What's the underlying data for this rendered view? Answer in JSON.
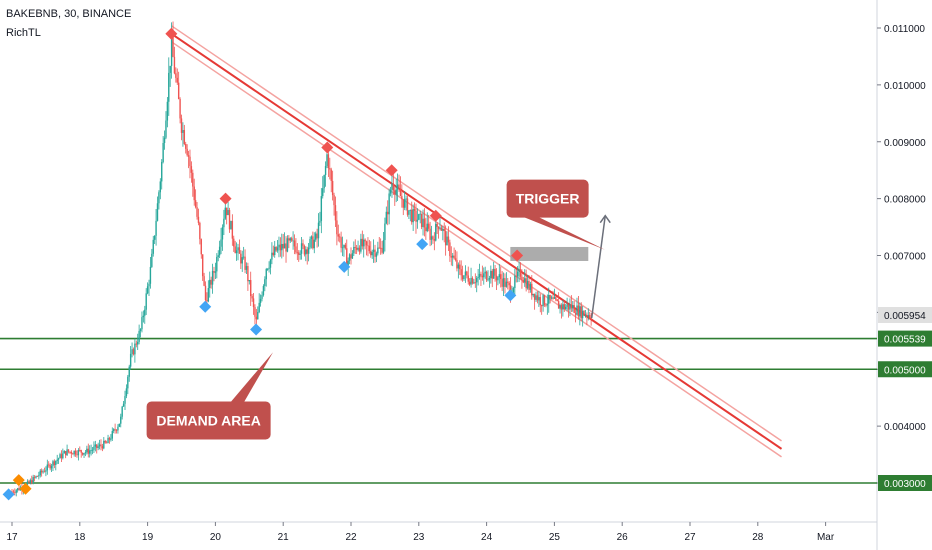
{
  "header": {
    "symbol_line": "BAKEBNB, 30, BINANCE",
    "indicator": "RichTL"
  },
  "colors": {
    "up": "#26a69a",
    "down": "#ef5350",
    "level": "#2e7d32",
    "trend": "#e53935",
    "trend_band": "#f4a3a0",
    "callout": "#c0504d",
    "trigger_box": "#9e9e9e",
    "buy_marker": "#42a5f5",
    "sell_marker": "#ef5350",
    "start_marker": "#fb8c00",
    "current_price_tag": "#e0e0e0"
  },
  "chart_data": {
    "type": "candlestick",
    "x_ticks": [
      "17",
      "18",
      "19",
      "20",
      "21",
      "22",
      "23",
      "24",
      "25",
      "26",
      "27",
      "28",
      "Mar"
    ],
    "y_ticks": [
      "0.011000",
      "0.010000",
      "0.009000",
      "0.008000",
      "0.007000",
      "0.006000",
      "0.005000",
      "0.004000",
      "0.003000"
    ],
    "ylim": [
      0.0019,
      0.0114
    ],
    "price_series": [
      [
        17.0,
        0.00285
      ],
      [
        17.2,
        0.00295
      ],
      [
        17.5,
        0.00325
      ],
      [
        17.8,
        0.00355
      ],
      [
        18.1,
        0.00355
      ],
      [
        18.4,
        0.0037
      ],
      [
        18.6,
        0.0041
      ],
      [
        18.75,
        0.0052
      ],
      [
        18.9,
        0.0057
      ],
      [
        19.05,
        0.0068
      ],
      [
        19.2,
        0.0085
      ],
      [
        19.35,
        0.0107
      ],
      [
        19.5,
        0.0093
      ],
      [
        19.6,
        0.0088
      ],
      [
        19.75,
        0.0075
      ],
      [
        19.85,
        0.0062
      ],
      [
        20.0,
        0.0068
      ],
      [
        20.15,
        0.0079
      ],
      [
        20.3,
        0.0071
      ],
      [
        20.45,
        0.0068
      ],
      [
        20.6,
        0.0058
      ],
      [
        20.75,
        0.0068
      ],
      [
        20.9,
        0.0071
      ],
      [
        21.1,
        0.0072
      ],
      [
        21.3,
        0.0071
      ],
      [
        21.5,
        0.0073
      ],
      [
        21.65,
        0.0088
      ],
      [
        21.8,
        0.0074
      ],
      [
        21.95,
        0.0069
      ],
      [
        22.1,
        0.0072
      ],
      [
        22.3,
        0.0071
      ],
      [
        22.45,
        0.0071
      ],
      [
        22.6,
        0.0083
      ],
      [
        22.75,
        0.008
      ],
      [
        22.9,
        0.0077
      ],
      [
        23.05,
        0.0076
      ],
      [
        23.2,
        0.0073
      ],
      [
        23.3,
        0.0076
      ],
      [
        23.45,
        0.0071
      ],
      [
        23.6,
        0.0067
      ],
      [
        23.75,
        0.0066
      ],
      [
        23.9,
        0.0066
      ],
      [
        24.05,
        0.0067
      ],
      [
        24.2,
        0.0066
      ],
      [
        24.35,
        0.0064
      ],
      [
        24.5,
        0.0067
      ],
      [
        24.65,
        0.0064
      ],
      [
        24.8,
        0.0062
      ],
      [
        24.95,
        0.0062
      ],
      [
        25.1,
        0.0061
      ],
      [
        25.25,
        0.0061
      ],
      [
        25.4,
        0.006
      ],
      [
        25.55,
        0.005954
      ]
    ],
    "support_levels": [
      0.005539,
      0.005,
      0.003
    ],
    "price_tags": [
      {
        "label": "0.005954",
        "value": 0.005954,
        "style": "current"
      },
      {
        "label": "0.005539",
        "value": 0.005539,
        "style": "level"
      },
      {
        "label": "0.005000",
        "value": 0.005,
        "style": "level"
      },
      {
        "label": "0.003000",
        "value": 0.003,
        "style": "level"
      }
    ],
    "trendline": {
      "start": [
        19.35,
        0.0109
      ],
      "end": [
        28.35,
        0.0036
      ]
    },
    "trigger_zone": {
      "x": [
        24.35,
        25.5
      ],
      "y": [
        0.007,
        0.00715
      ]
    },
    "projection_arrow": {
      "from": [
        25.55,
        0.0059
      ],
      "to": [
        25.75,
        0.0077
      ]
    },
    "sell_markers": [
      [
        19.35,
        0.0109
      ],
      [
        20.15,
        0.008
      ],
      [
        21.65,
        0.0089
      ],
      [
        22.6,
        0.0085
      ],
      [
        23.25,
        0.0077
      ],
      [
        24.45,
        0.007
      ]
    ],
    "buy_markers": [
      [
        16.95,
        0.0028
      ],
      [
        19.85,
        0.0061
      ],
      [
        20.6,
        0.0057
      ],
      [
        21.9,
        0.0068
      ],
      [
        23.05,
        0.0072
      ],
      [
        24.35,
        0.0063
      ]
    ],
    "start_markers": [
      [
        17.1,
        0.00305
      ],
      [
        17.2,
        0.0029
      ]
    ],
    "annotations": [
      {
        "text": "TRIGGER",
        "x": 24.9,
        "y": 0.008,
        "arrow_to": [
          25.75,
          0.0071
        ]
      },
      {
        "text": "DEMAND AREA",
        "x": 19.9,
        "y": 0.0041,
        "arrow_to": [
          20.85,
          0.0053
        ]
      }
    ]
  }
}
